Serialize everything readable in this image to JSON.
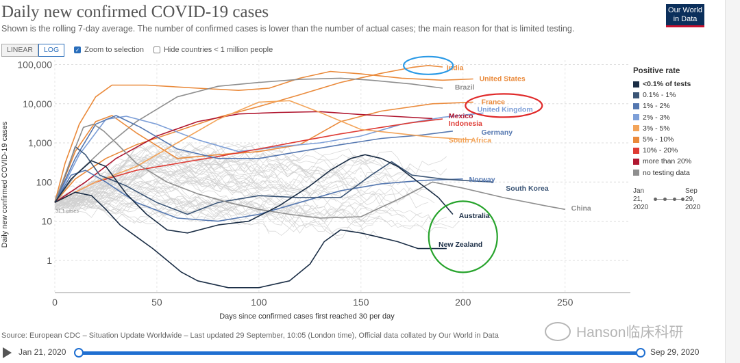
{
  "header": {
    "title": "Daily new confirmed COVID-19 cases",
    "subtitle": "Shown is the rolling 7-day average. The number of confirmed cases is lower than the number of actual cases; the main reason for that is limited testing.",
    "logo_line1": "Our World",
    "logo_line2": "in Data"
  },
  "controls": {
    "linear_label": "LINEAR",
    "log_label": "LOG",
    "zoom_label": "Zoom to selection",
    "zoom_checked": true,
    "hide_label": "Hide countries < 1 million people",
    "hide_checked": false
  },
  "legend": {
    "title": "Positive rate",
    "items": [
      {
        "label": "<0.1% of tests",
        "color": "#1a2d45"
      },
      {
        "label": "0.1% - 1%",
        "color": "#3b5576"
      },
      {
        "label": "1% - 2%",
        "color": "#5477b0"
      },
      {
        "label": "2% - 3%",
        "color": "#7d9fd8"
      },
      {
        "label": "3% - 5%",
        "color": "#f3a459"
      },
      {
        "label": "5% - 10%",
        "color": "#ea8a3b"
      },
      {
        "label": "10% - 20%",
        "color": "#de3a33"
      },
      {
        "label": "more than 20%",
        "color": "#b01730"
      },
      {
        "label": "no testing data",
        "color": "#8e8e8e"
      }
    ]
  },
  "mini_timeline": {
    "start_a": "Jan",
    "start_b": "21,",
    "start_c": "2020",
    "end_a": "Sep",
    "end_b": "29,",
    "end_c": "2020"
  },
  "source": "Source: European CDC – Situation Update Worldwide – Last updated 29 September, 10:05 (London time), Official data collated by Our World in Data",
  "watermark": "Hanson临床科研",
  "timeline": {
    "start_label": "Jan 21, 2020",
    "end_label": "Sep 29, 2020",
    "start_position": 0,
    "end_position": 1
  },
  "chart_data": {
    "type": "line",
    "title": "Daily new confirmed COVID-19 cases",
    "xlabel": "Days since confirmed cases first reached 30 per day",
    "ylabel": "Daily new confirmed COVID-19 cases",
    "scale": "log",
    "xlim": [
      0,
      282
    ],
    "ylim": [
      0.15,
      130000
    ],
    "x_ticks": [
      0,
      50,
      100,
      150,
      200,
      250
    ],
    "y_ticks": [
      {
        "v": 1,
        "label": "1"
      },
      {
        "v": 10,
        "label": "10"
      },
      {
        "v": 100,
        "label": "100"
      },
      {
        "v": 1000,
        "label": "1,000"
      },
      {
        "v": 10000,
        "label": "10,000"
      },
      {
        "v": 100000,
        "label": "100,000"
      }
    ],
    "start_note": "31.1 cases",
    "series": [
      {
        "name": "India",
        "color": "#ea8a3b",
        "points": [
          [
            0,
            30
          ],
          [
            10,
            120
          ],
          [
            25,
            400
          ],
          [
            40,
            900
          ],
          [
            60,
            2000
          ],
          [
            80,
            4500
          ],
          [
            100,
            8500
          ],
          [
            120,
            17000
          ],
          [
            140,
            35000
          ],
          [
            160,
            60000
          ],
          [
            175,
            85000
          ],
          [
            183,
            95000
          ],
          [
            190,
            87000
          ]
        ]
      },
      {
        "name": "United States",
        "color": "#ea8a3b",
        "points": [
          [
            0,
            30
          ],
          [
            5,
            300
          ],
          [
            12,
            3000
          ],
          [
            20,
            15000
          ],
          [
            28,
            30000
          ],
          [
            45,
            30000
          ],
          [
            70,
            25000
          ],
          [
            90,
            22000
          ],
          [
            105,
            25000
          ],
          [
            120,
            45000
          ],
          [
            135,
            67000
          ],
          [
            150,
            58000
          ],
          [
            170,
            45000
          ],
          [
            190,
            40000
          ],
          [
            205,
            43000
          ]
        ]
      },
      {
        "name": "Brazil",
        "color": "#8e8e8e",
        "points": [
          [
            0,
            30
          ],
          [
            10,
            150
          ],
          [
            25,
            800
          ],
          [
            40,
            3500
          ],
          [
            60,
            15000
          ],
          [
            80,
            28000
          ],
          [
            100,
            35000
          ],
          [
            120,
            42000
          ],
          [
            140,
            45000
          ],
          [
            155,
            40000
          ],
          [
            175,
            32000
          ],
          [
            190,
            25000
          ]
        ]
      },
      {
        "name": "France",
        "color": "#ea8a3b",
        "points": [
          [
            0,
            30
          ],
          [
            10,
            600
          ],
          [
            20,
            3500
          ],
          [
            28,
            5000
          ],
          [
            40,
            1800
          ],
          [
            60,
            400
          ],
          [
            80,
            500
          ],
          [
            100,
            600
          ],
          [
            120,
            900
          ],
          [
            140,
            3500
          ],
          [
            160,
            6500
          ],
          [
            185,
            10000
          ],
          [
            205,
            11000
          ]
        ]
      },
      {
        "name": "United Kingdom",
        "color": "#7d9fd8",
        "points": [
          [
            0,
            30
          ],
          [
            12,
            500
          ],
          [
            25,
            4000
          ],
          [
            35,
            4800
          ],
          [
            50,
            3000
          ],
          [
            70,
            1200
          ],
          [
            90,
            600
          ],
          [
            110,
            800
          ],
          [
            130,
            1000
          ],
          [
            150,
            1500
          ],
          [
            170,
            3000
          ],
          [
            190,
            4500
          ],
          [
            210,
            5800
          ]
        ]
      },
      {
        "name": "Mexico",
        "color": "#b01730",
        "points": [
          [
            0,
            30
          ],
          [
            15,
            100
          ],
          [
            30,
            400
          ],
          [
            50,
            1500
          ],
          [
            70,
            3500
          ],
          [
            90,
            5500
          ],
          [
            110,
            6000
          ],
          [
            130,
            6300
          ],
          [
            150,
            5300
          ],
          [
            165,
            4800
          ],
          [
            185,
            4200
          ]
        ]
      },
      {
        "name": "Indonesia",
        "color": "#de3a33",
        "points": [
          [
            0,
            30
          ],
          [
            20,
            100
          ],
          [
            40,
            200
          ],
          [
            60,
            300
          ],
          [
            80,
            450
          ],
          [
            100,
            700
          ],
          [
            120,
            1100
          ],
          [
            140,
            1700
          ],
          [
            160,
            2500
          ],
          [
            175,
            3300
          ],
          [
            190,
            4100
          ]
        ]
      },
      {
        "name": "Germany",
        "color": "#5477b0",
        "points": [
          [
            0,
            30
          ],
          [
            10,
            400
          ],
          [
            20,
            3000
          ],
          [
            30,
            5000
          ],
          [
            42,
            2500
          ],
          [
            60,
            700
          ],
          [
            80,
            400
          ],
          [
            100,
            400
          ],
          [
            120,
            600
          ],
          [
            140,
            900
          ],
          [
            160,
            1300
          ],
          [
            180,
            1600
          ],
          [
            195,
            2000
          ]
        ]
      },
      {
        "name": "South Africa",
        "color": "#f3a459",
        "points": [
          [
            0,
            30
          ],
          [
            20,
            100
          ],
          [
            40,
            250
          ],
          [
            60,
            1000
          ],
          [
            80,
            4000
          ],
          [
            100,
            11000
          ],
          [
            115,
            12000
          ],
          [
            130,
            6000
          ],
          [
            150,
            2200
          ],
          [
            170,
            1700
          ],
          [
            185,
            1400
          ],
          [
            205,
            1200
          ]
        ]
      },
      {
        "name": "Norway",
        "color": "#5477b0",
        "points": [
          [
            0,
            30
          ],
          [
            8,
            150
          ],
          [
            15,
            200
          ],
          [
            25,
            100
          ],
          [
            40,
            30
          ],
          [
            60,
            12
          ],
          [
            80,
            10
          ],
          [
            100,
            15
          ],
          [
            120,
            30
          ],
          [
            140,
            60
          ],
          [
            160,
            90
          ],
          [
            180,
            110
          ],
          [
            200,
            120
          ]
        ]
      },
      {
        "name": "South Korea",
        "color": "#3b5576",
        "points": [
          [
            0,
            30
          ],
          [
            6,
            200
          ],
          [
            10,
            800
          ],
          [
            15,
            500
          ],
          [
            22,
            150
          ],
          [
            35,
            80
          ],
          [
            50,
            30
          ],
          [
            65,
            15
          ],
          [
            80,
            30
          ],
          [
            100,
            45
          ],
          [
            120,
            40
          ],
          [
            140,
            40
          ],
          [
            155,
            150
          ],
          [
            165,
            330
          ],
          [
            175,
            150
          ],
          [
            190,
            120
          ],
          [
            200,
            110
          ],
          [
            215,
            100
          ]
        ]
      },
      {
        "name": "China",
        "color": "#8e8e8e",
        "points": [
          [
            0,
            30
          ],
          [
            8,
            400
          ],
          [
            14,
            2500
          ],
          [
            19,
            3000
          ],
          [
            24,
            2000
          ],
          [
            30,
            1000
          ],
          [
            40,
            300
          ],
          [
            55,
            100
          ],
          [
            70,
            50
          ],
          [
            85,
            30
          ],
          [
            100,
            20
          ],
          [
            115,
            15
          ],
          [
            130,
            12
          ],
          [
            150,
            13
          ],
          [
            170,
            40
          ],
          [
            185,
            100
          ],
          [
            200,
            70
          ],
          [
            220,
            40
          ],
          [
            240,
            25
          ],
          [
            250,
            20
          ]
        ]
      },
      {
        "name": "Australia",
        "color": "#1a2d45",
        "points": [
          [
            0,
            30
          ],
          [
            8,
            120
          ],
          [
            18,
            350
          ],
          [
            25,
            250
          ],
          [
            35,
            50
          ],
          [
            45,
            15
          ],
          [
            55,
            6
          ],
          [
            65,
            5
          ],
          [
            80,
            8
          ],
          [
            95,
            10
          ],
          [
            110,
            25
          ],
          [
            125,
            80
          ],
          [
            135,
            200
          ],
          [
            145,
            400
          ],
          [
            152,
            500
          ],
          [
            160,
            400
          ],
          [
            168,
            250
          ],
          [
            178,
            100
          ],
          [
            188,
            40
          ],
          [
            195,
            15
          ]
        ]
      },
      {
        "name": "New Zealand",
        "color": "#1a2d45",
        "points": [
          [
            0,
            30
          ],
          [
            10,
            55
          ],
          [
            18,
            45
          ],
          [
            25,
            20
          ],
          [
            32,
            8
          ],
          [
            40,
            4
          ],
          [
            48,
            2
          ],
          [
            55,
            1
          ],
          [
            62,
            0.5
          ],
          [
            70,
            0.3
          ],
          [
            85,
            0.2
          ],
          [
            100,
            0.2
          ],
          [
            115,
            0.3
          ],
          [
            125,
            0.8
          ],
          [
            132,
            3
          ],
          [
            140,
            6
          ],
          [
            150,
            5
          ],
          [
            158,
            4
          ],
          [
            168,
            3
          ],
          [
            178,
            2
          ],
          [
            185,
            2
          ],
          [
            192,
            2
          ]
        ]
      }
    ],
    "labels": [
      {
        "name": "India",
        "at": [
          192,
          85000
        ],
        "color": "#ea8a3b"
      },
      {
        "name": "United States",
        "at": [
          208,
          45000
        ],
        "color": "#ea8a3b"
      },
      {
        "name": "Brazil",
        "at": [
          196,
          27000
        ],
        "color": "#8e8e8e"
      },
      {
        "name": "France",
        "at": [
          209,
          11500
        ],
        "color": "#ea8a3b"
      },
      {
        "name": "United Kingdom",
        "at": [
          207,
          7300
        ],
        "color": "#7d9fd8"
      },
      {
        "name": "Mexico",
        "at": [
          193,
          5000
        ],
        "color": "#b01730"
      },
      {
        "name": "Indonesia",
        "at": [
          193,
          3200
        ],
        "color": "#de3a33"
      },
      {
        "name": "Germany",
        "at": [
          209,
          1900
        ],
        "color": "#5477b0"
      },
      {
        "name": "South Africa",
        "at": [
          193,
          1200
        ],
        "color": "#f3a459"
      },
      {
        "name": "Norway",
        "at": [
          203,
          120
        ],
        "color": "#5477b0"
      },
      {
        "name": "South Korea",
        "at": [
          221,
          70
        ],
        "color": "#3b5576"
      },
      {
        "name": "China",
        "at": [
          253,
          22
        ],
        "color": "#8e8e8e"
      },
      {
        "name": "Australia",
        "at": [
          198,
          14
        ],
        "color": "#1a2d45"
      },
      {
        "name": "New Zealand",
        "at": [
          188,
          2.6
        ],
        "color": "#1a2d45"
      }
    ],
    "annotations": [
      {
        "type": "ellipse",
        "target": "India",
        "color": "#2b9ae6"
      },
      {
        "type": "ellipse",
        "target": "France / United Kingdom",
        "color": "#e02a2a"
      },
      {
        "type": "ellipse",
        "target": "Australia / New Zealand",
        "color": "#26a32b"
      }
    ]
  }
}
